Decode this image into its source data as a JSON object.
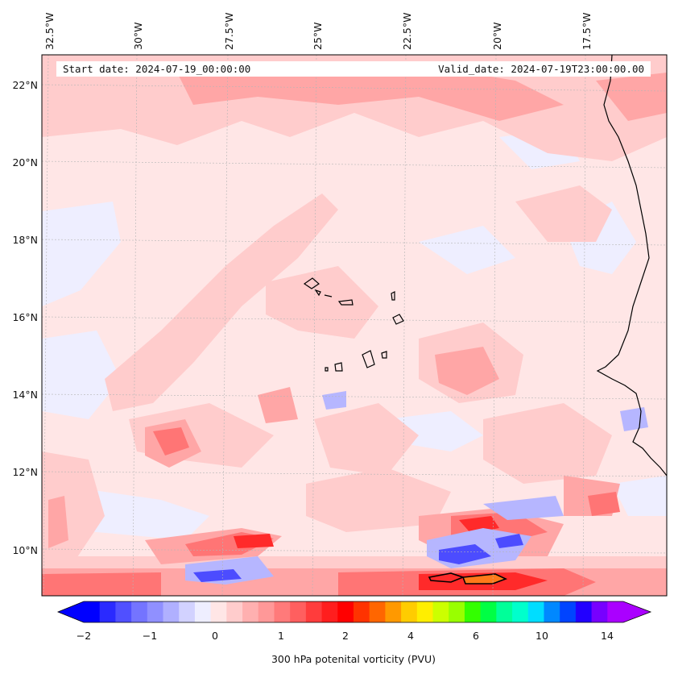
{
  "header": {
    "start_date": "Start date: 2024-07-19_00:00:00",
    "valid_date": "Valid_date: 2024-07-19T23:00:00.00"
  },
  "axes": {
    "lon_labels": [
      "32.5°W",
      "30°W",
      "27.5°W",
      "25°W",
      "22.5°W",
      "20°W",
      "17.5°W"
    ],
    "lat_labels": [
      "22°N",
      "20°N",
      "18°N",
      "16°N",
      "14°N",
      "12°N",
      "10°N"
    ]
  },
  "colorbar": {
    "title": "300 hPa potenital vorticity (PVU)",
    "tick_labels": [
      "−2",
      "−1",
      "0",
      "1",
      "2",
      "4",
      "6",
      "10",
      "14"
    ],
    "colors": [
      "#0000ff",
      "#2a2aff",
      "#5050ff",
      "#7474ff",
      "#9090ff",
      "#b0b0ff",
      "#d2d2ff",
      "#eeeeff",
      "#ffe6e6",
      "#ffcccc",
      "#ffb0b0",
      "#ff9898",
      "#ff7a7a",
      "#ff5f5f",
      "#ff3c3c",
      "#ff1e1e",
      "#ff0000",
      "#ff3300",
      "#ff6600",
      "#ff9900",
      "#ffcc00",
      "#ffee00",
      "#ccff00",
      "#99ff00",
      "#33ff00",
      "#00ff44",
      "#00ff99",
      "#00ffcc",
      "#00ddff",
      "#0088ff",
      "#0044ff",
      "#2200ff",
      "#7700ff",
      "#aa00ff"
    ]
  },
  "map_colors": {
    "background": "#ffe6e6",
    "light_red": "#ffcccc",
    "mid_red": "#ffa6a6",
    "red": "#ff7575",
    "strong_red": "#ff2a2a",
    "light_blue": "#eeeeff",
    "blue": "#b6b6ff",
    "deep_blue": "#4c4cff",
    "orange": "#ff7a1a"
  }
}
